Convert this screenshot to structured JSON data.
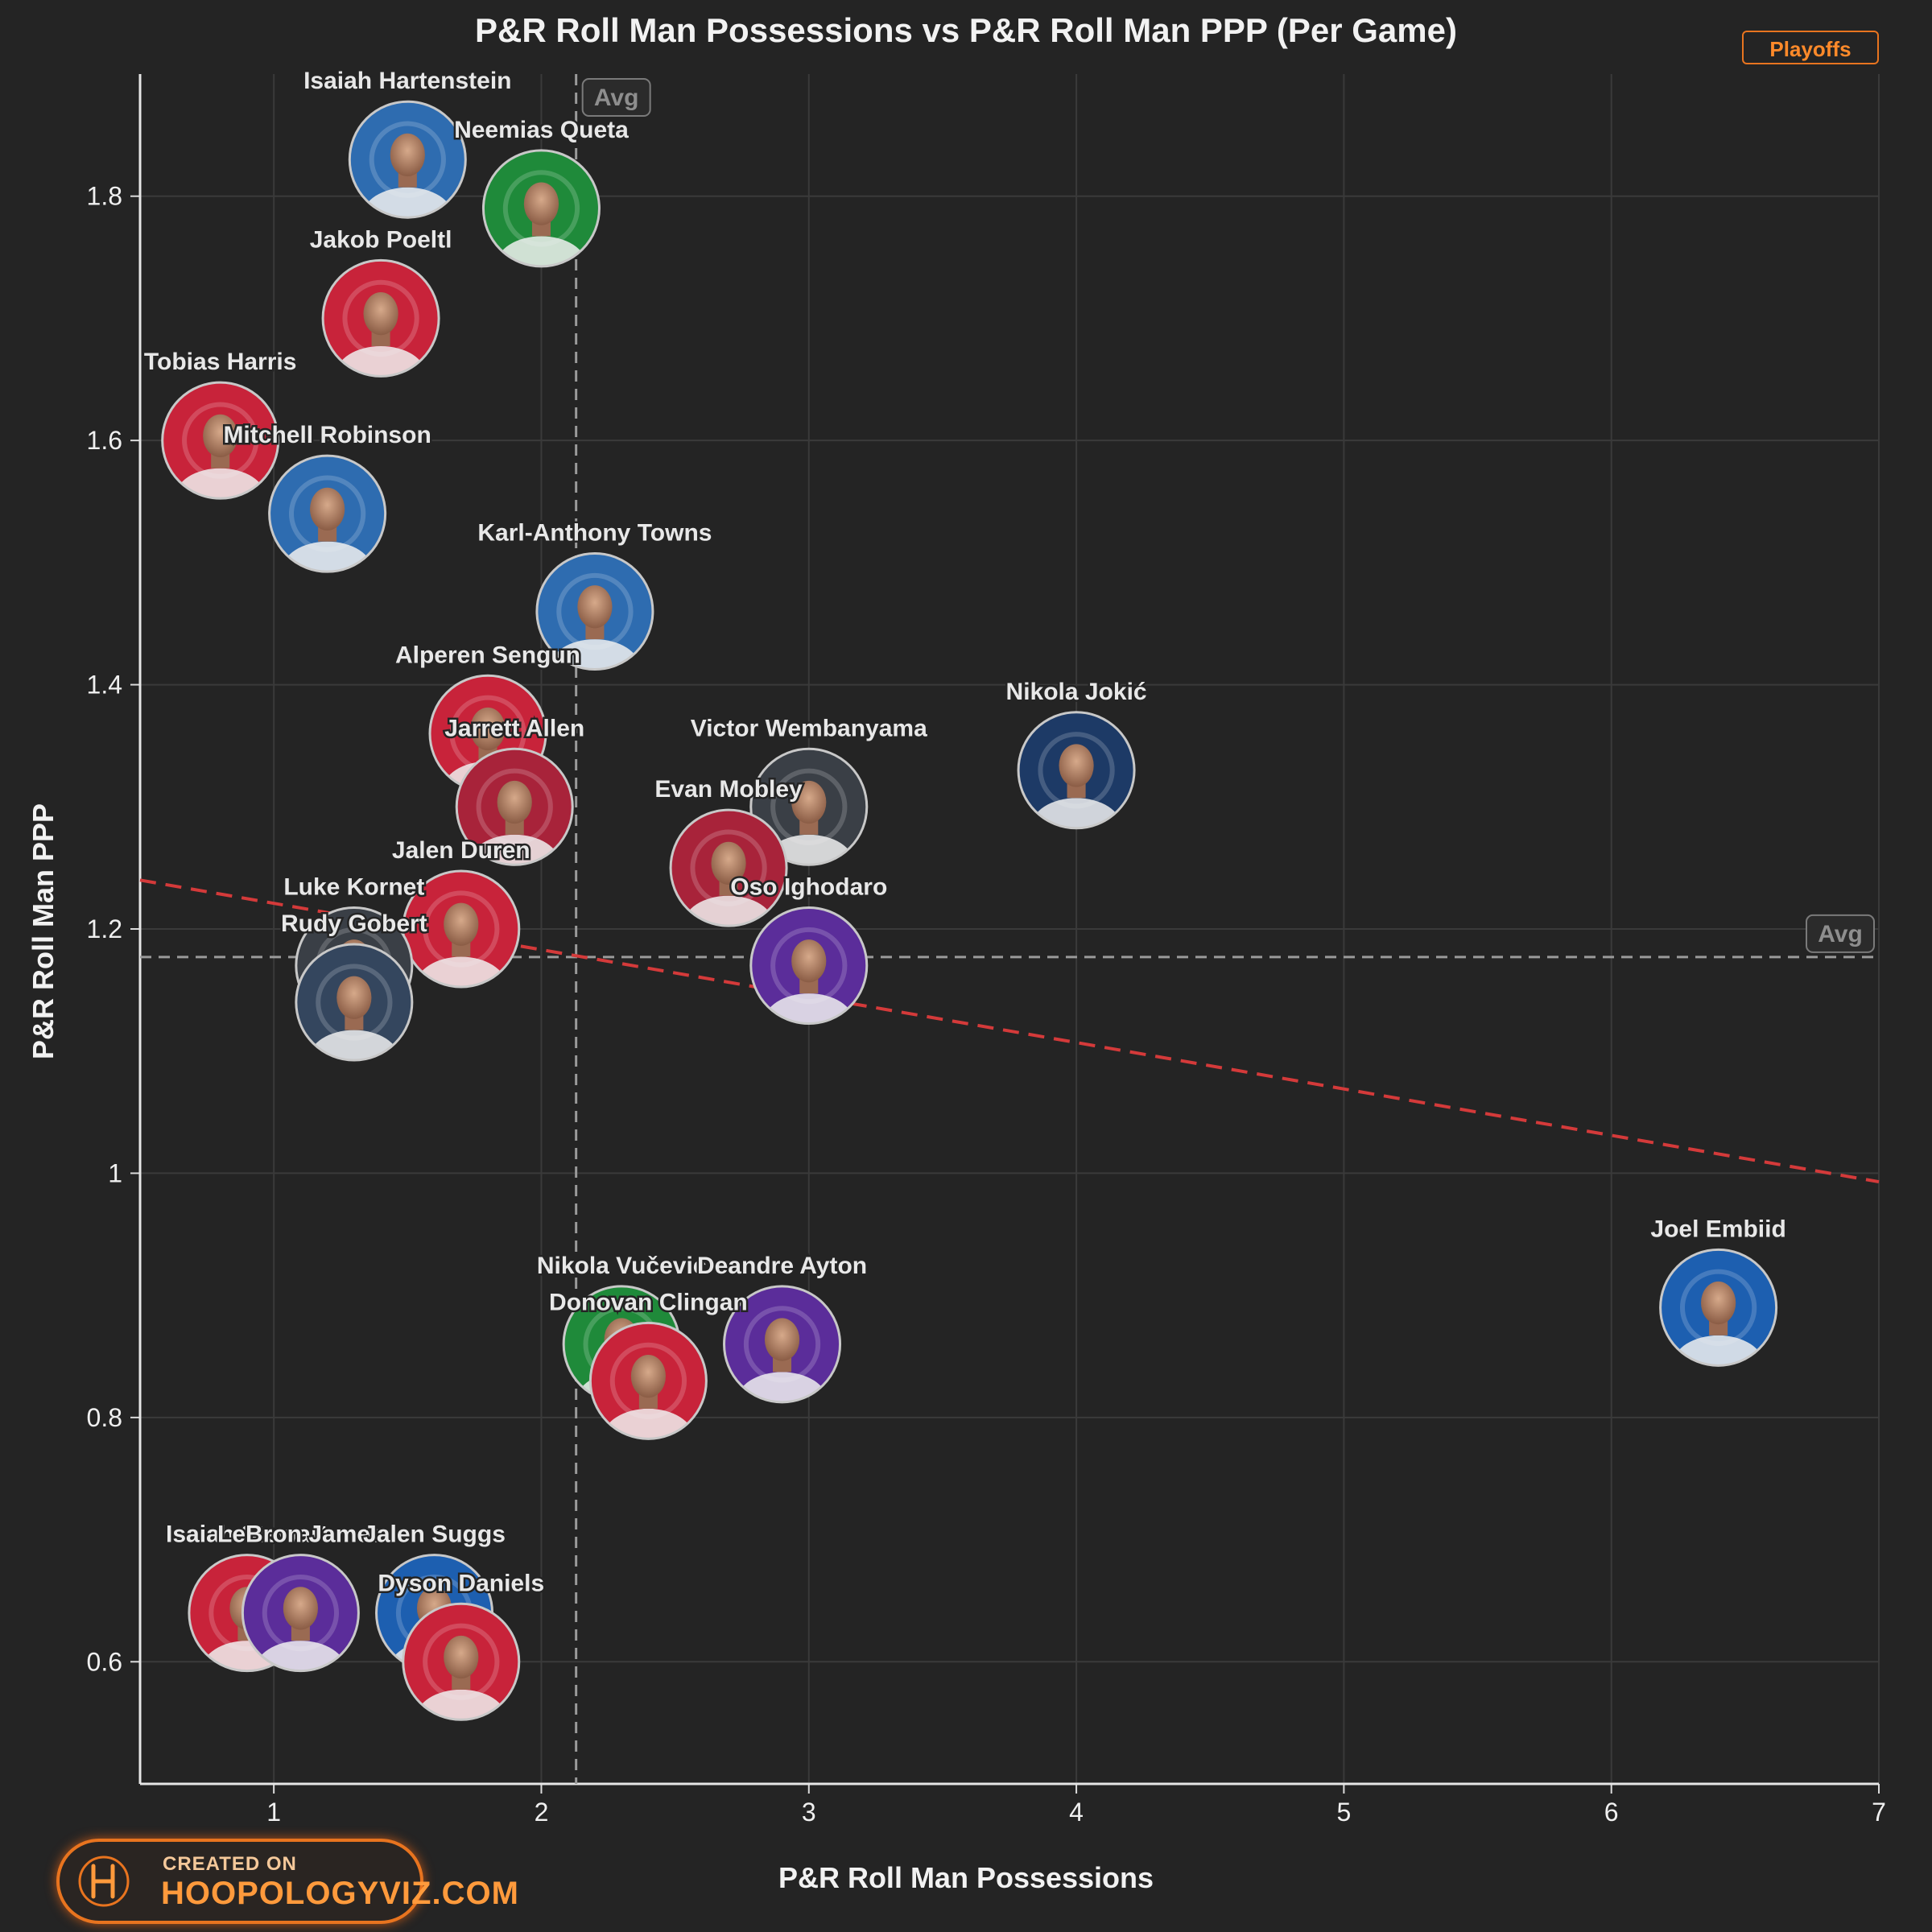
{
  "header": {
    "title": "P&R Roll Man Possessions vs P&R Roll Man PPP (Per Game)",
    "badge": "Playoffs"
  },
  "footer": {
    "logo_line1": "CREATED ON",
    "logo_line2": "HOOPOLOGYVIZ.COM"
  },
  "colors": {
    "background": "#242424",
    "trend": "#d43a3a",
    "avg": "#9a9a9a",
    "accent": "#e8741f"
  },
  "chart_data": {
    "type": "scatter",
    "title": "P&R Roll Man Possessions vs P&R Roll Man PPP (Per Game)",
    "xlabel": "P&R Roll Man Possessions",
    "ylabel": "P&R Roll Man PPP",
    "xlim": [
      0.5,
      7
    ],
    "ylim": [
      0.5,
      1.9
    ],
    "xticks": [
      "1",
      "2",
      "3",
      "4",
      "5",
      "6",
      "7"
    ],
    "yticks": [
      "0.6",
      "0.8",
      "1",
      "1.2",
      "1.4",
      "1.6",
      "1.8"
    ],
    "grid": true,
    "avg_x": 2.13,
    "avg_y": 1.177,
    "avg_label": "Avg",
    "trendline": {
      "x": [
        0.5,
        7
      ],
      "y": [
        1.24,
        0.993
      ]
    },
    "points": [
      {
        "name": "Isaiah Hartenstein",
        "x": 1.5,
        "y": 1.83,
        "color": "#2e6cb0"
      },
      {
        "name": "Neemias Queta",
        "x": 2.0,
        "y": 1.79,
        "color": "#1f8a3a"
      },
      {
        "name": "Jakob Poeltl",
        "x": 1.4,
        "y": 1.7,
        "color": "#c8233a"
      },
      {
        "name": "Tobias Harris",
        "x": 0.8,
        "y": 1.6,
        "color": "#c8233a"
      },
      {
        "name": "Mitchell Robinson",
        "x": 1.2,
        "y": 1.54,
        "color": "#2e6cb0"
      },
      {
        "name": "Karl-Anthony Towns",
        "x": 2.2,
        "y": 1.46,
        "color": "#2e6cb0"
      },
      {
        "name": "Alperen Sengun",
        "x": 1.8,
        "y": 1.36,
        "color": "#c8233a"
      },
      {
        "name": "Jarrett Allen",
        "x": 1.9,
        "y": 1.3,
        "color": "#a8233a"
      },
      {
        "name": "Nikola Jokić",
        "x": 4.0,
        "y": 1.33,
        "color": "#1d3a66"
      },
      {
        "name": "Victor Wembanyama",
        "x": 3.0,
        "y": 1.3,
        "color": "#3a3f46"
      },
      {
        "name": "Evan Mobley",
        "x": 2.7,
        "y": 1.25,
        "color": "#a8233a"
      },
      {
        "name": "Jalen Duren",
        "x": 1.7,
        "y": 1.2,
        "color": "#c8233a"
      },
      {
        "name": "Luke Kornet",
        "x": 1.3,
        "y": 1.17,
        "color": "#3a3f46"
      },
      {
        "name": "Rudy Gobert",
        "x": 1.3,
        "y": 1.14,
        "color": "#34465e"
      },
      {
        "name": "Oso Ighodaro",
        "x": 3.0,
        "y": 1.17,
        "color": "#5b2d9a"
      },
      {
        "name": "Nikola Vučević",
        "x": 2.3,
        "y": 0.86,
        "color": "#1f8a3a"
      },
      {
        "name": "Donovan Clingan",
        "x": 2.4,
        "y": 0.83,
        "color": "#c8233a"
      },
      {
        "name": "Deandre Ayton",
        "x": 2.9,
        "y": 0.86,
        "color": "#5b2d9a"
      },
      {
        "name": "Joel Embiid",
        "x": 6.4,
        "y": 0.89,
        "color": "#1d5fb0"
      },
      {
        "name": "Isaiah Stewart",
        "x": 0.9,
        "y": 0.64,
        "color": "#c8233a"
      },
      {
        "name": "LeBron James",
        "x": 1.1,
        "y": 0.64,
        "color": "#5b2d9a"
      },
      {
        "name": "Jalen Suggs",
        "x": 1.6,
        "y": 0.64,
        "color": "#1d5fb0"
      },
      {
        "name": "Dyson Daniels",
        "x": 1.7,
        "y": 0.6,
        "color": "#c8233a"
      }
    ]
  }
}
